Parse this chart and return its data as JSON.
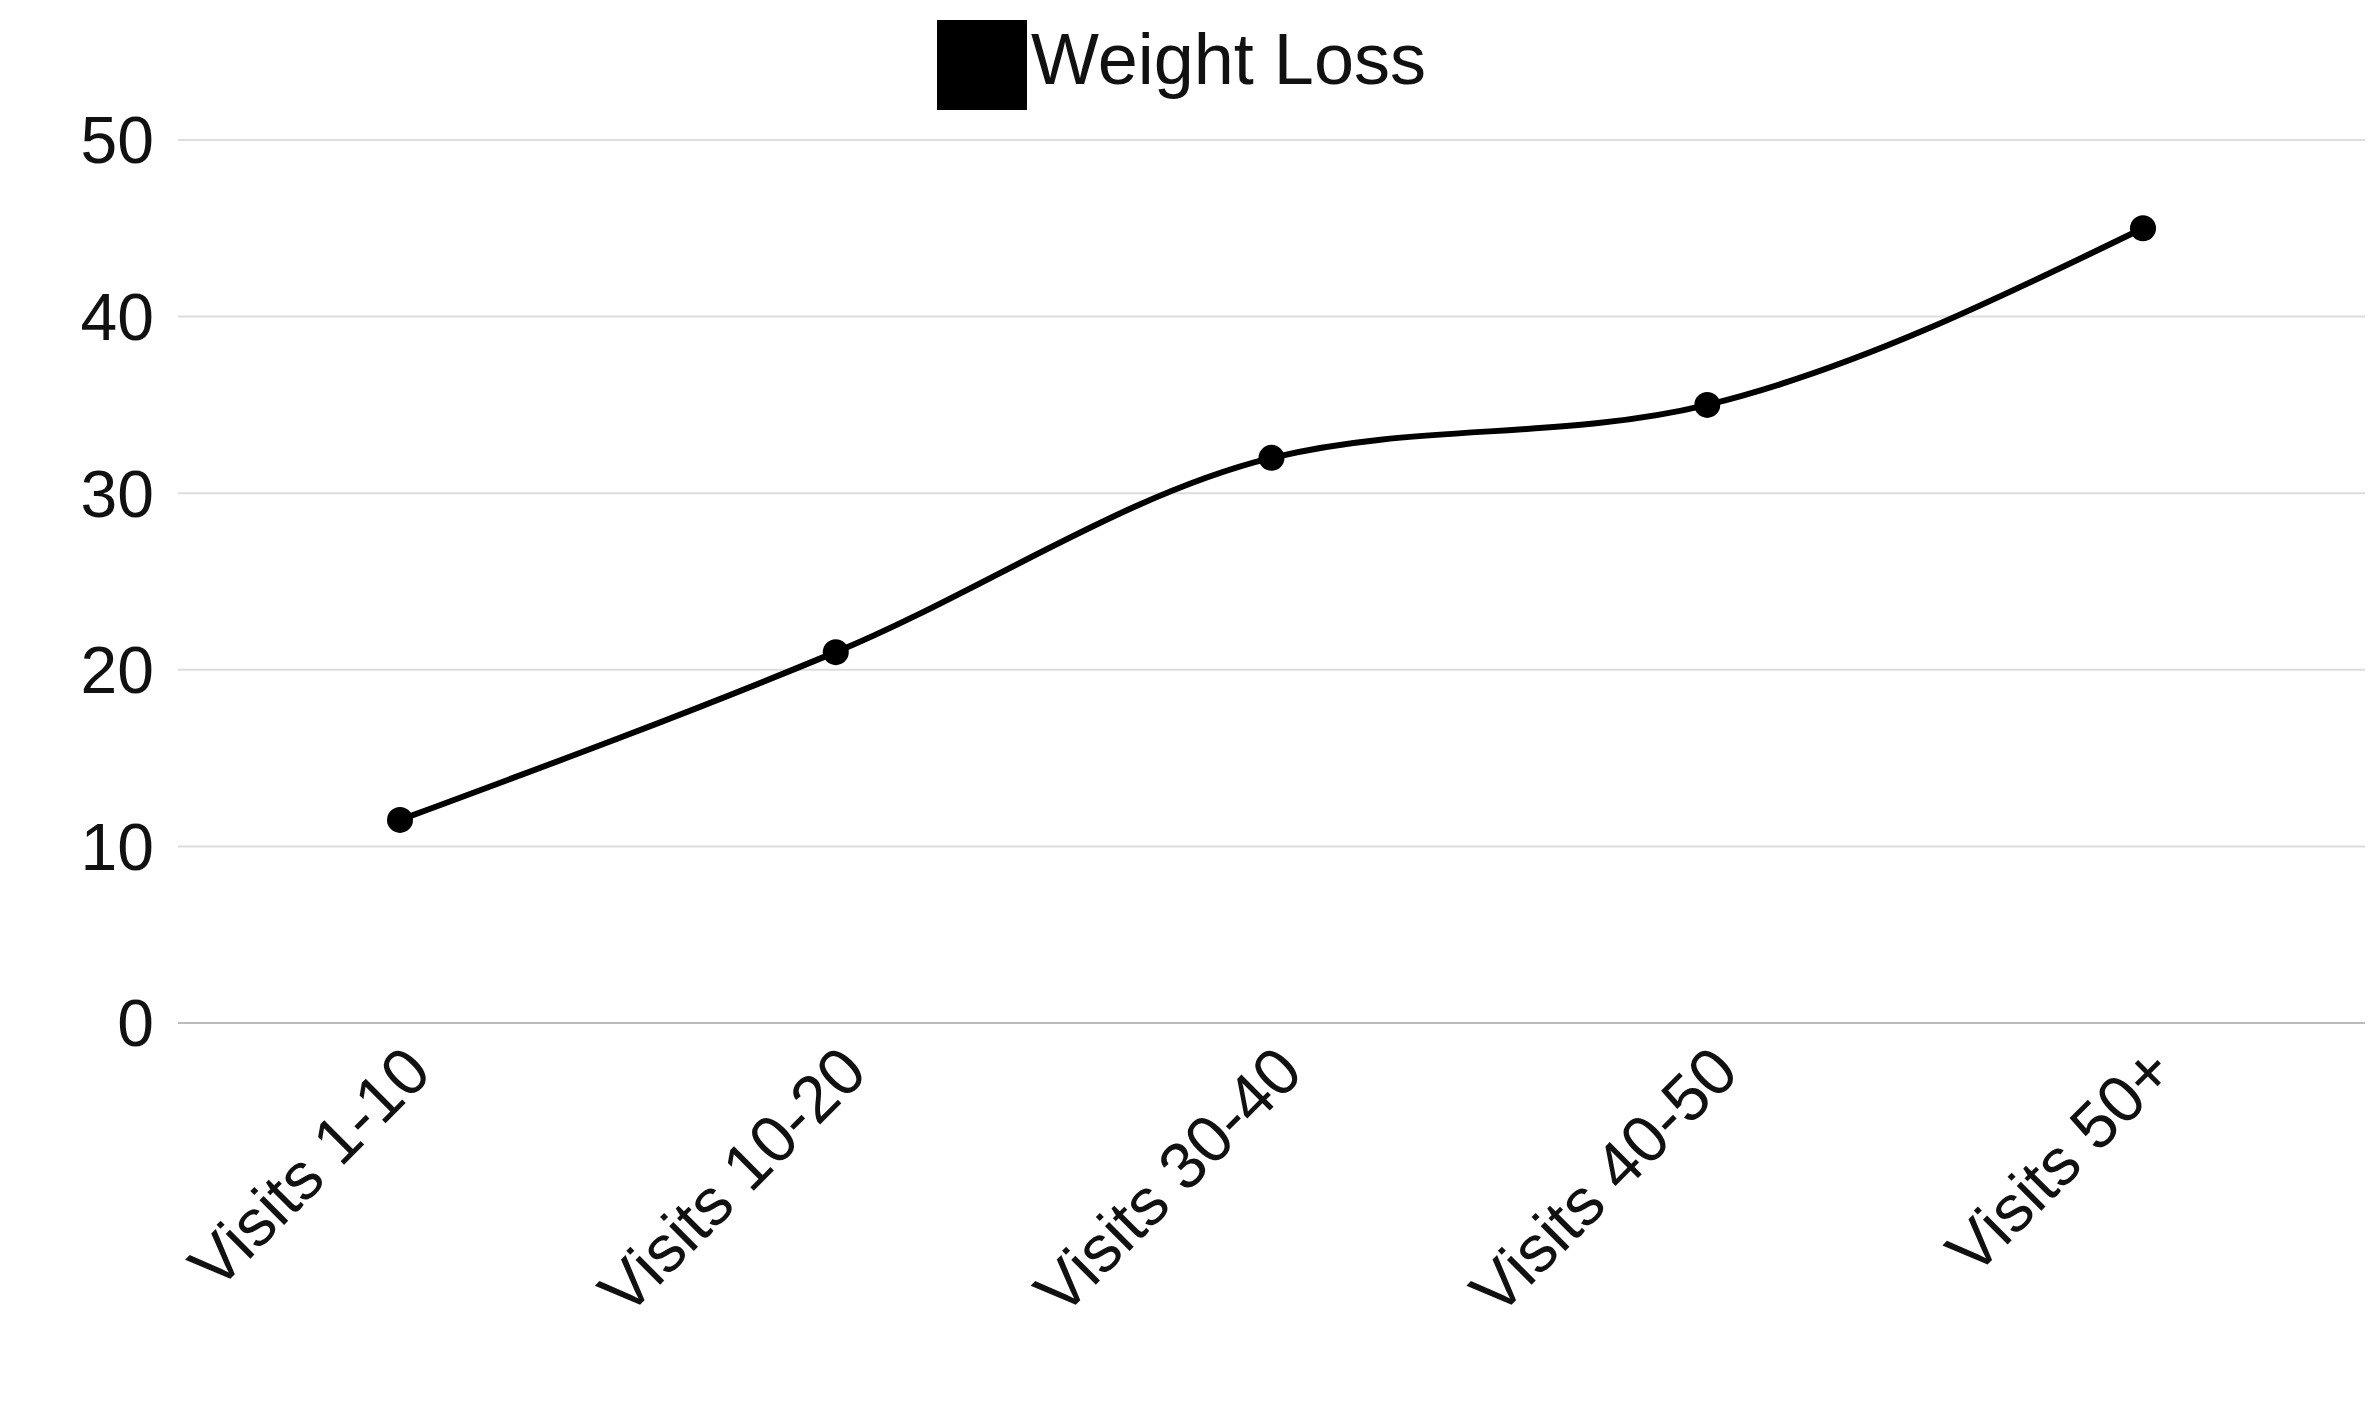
{
  "chart_data": {
    "type": "line",
    "categories": [
      "Visits 1-10",
      "Visits 10-20",
      "Visits 30-40",
      "Visits 40-50",
      "Visits 50+"
    ],
    "series": [
      {
        "name": "Weight Loss",
        "color": "#000000",
        "values": [
          11.5,
          21,
          32,
          35,
          45
        ]
      }
    ],
    "ylim": [
      0,
      50
    ],
    "yticks": [
      0,
      10,
      20,
      30,
      40,
      50
    ],
    "grid": "y",
    "legend": "top",
    "marker": "circle",
    "line_style": "solid"
  }
}
